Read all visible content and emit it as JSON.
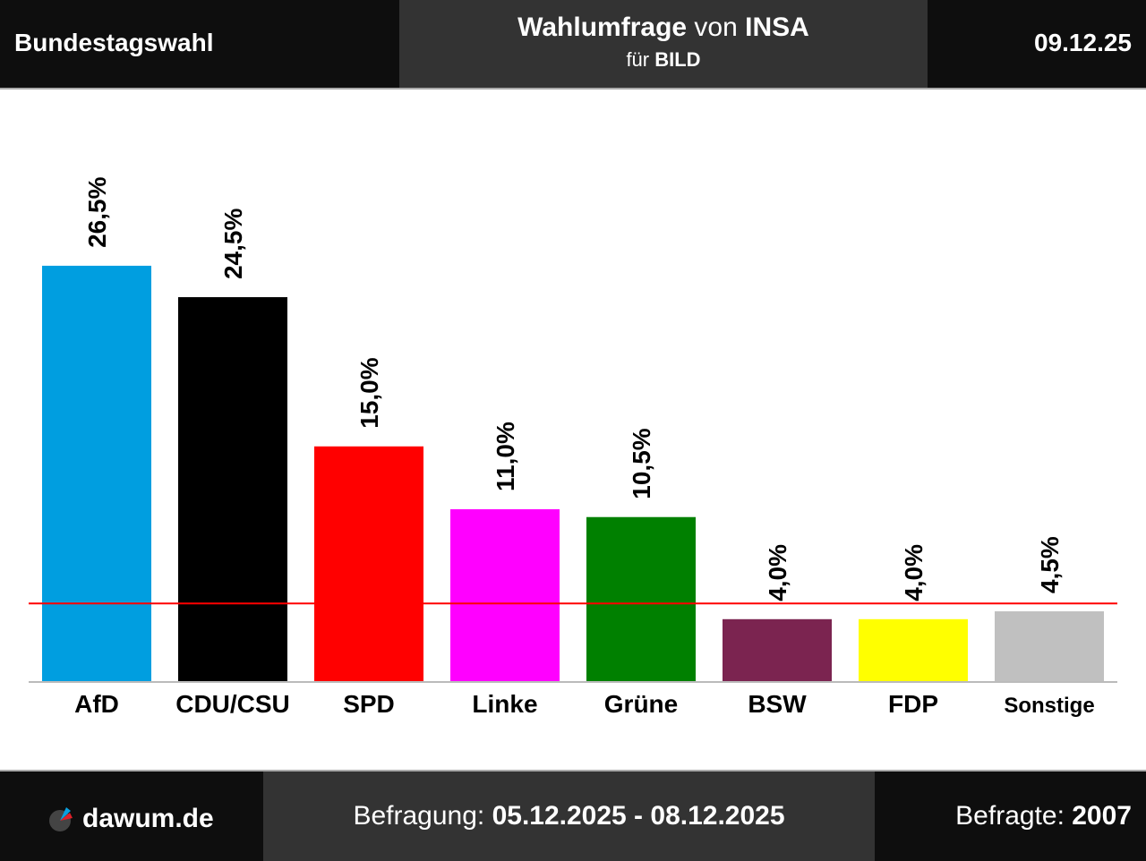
{
  "header": {
    "left": "Bundestagswahl",
    "title_bold": "Wahlumfrage",
    "title_mid": " von ",
    "title_inst": "INSA",
    "sub_pre": "für ",
    "sub_client": "BILD",
    "date": "09.12.25"
  },
  "footer": {
    "logo_text": "dawum.de",
    "period_label": "Befragung: ",
    "period_value": "05.12.2025 - 08.12.2025",
    "n_label": "Befragte: ",
    "n_value": "2007"
  },
  "chart_data": {
    "type": "bar",
    "categories": [
      "AfD",
      "CDU/CSU",
      "SPD",
      "Linke",
      "Grüne",
      "BSW",
      "FDP",
      "Sonstige"
    ],
    "values": [
      26.5,
      24.5,
      15.0,
      11.0,
      10.5,
      4.0,
      4.0,
      4.5
    ],
    "labels": [
      "26,5%",
      "24,5%",
      "15,0%",
      "11,0%",
      "10,5%",
      "4,0%",
      "4,0%",
      "4,5%"
    ],
    "colors": [
      "#009ee0",
      "#000000",
      "#ff0000",
      "#ff00ff",
      "#008000",
      "#7b2450",
      "#ffff00",
      "#c0c0c0"
    ],
    "threshold": 5,
    "threshold_color": "#ff0000",
    "ylim": [
      0,
      28
    ]
  }
}
